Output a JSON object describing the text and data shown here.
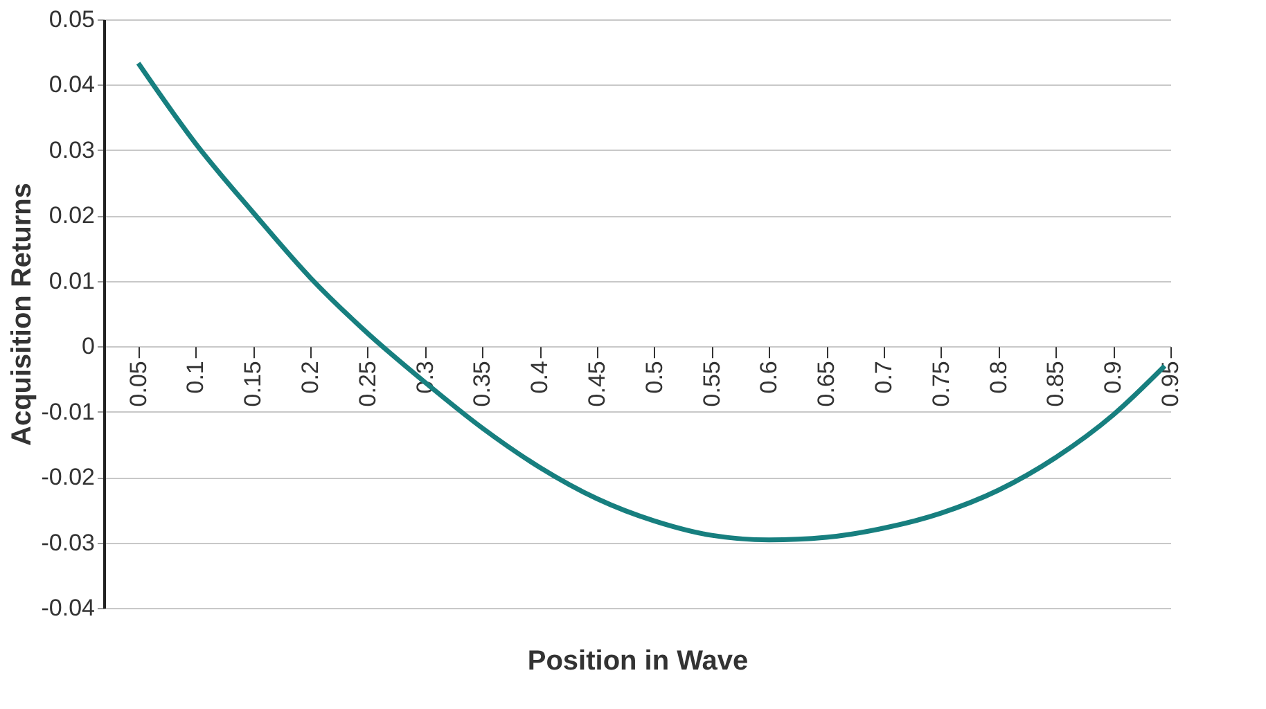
{
  "chart_data": {
    "type": "line",
    "xlabel": "Position in Wave",
    "ylabel": "Acquisition Returns",
    "xlim": [
      0.02,
      0.95
    ],
    "xticks": [
      0.05,
      0.1,
      0.15,
      0.2,
      0.25,
      0.3,
      0.35,
      0.4,
      0.45,
      0.5,
      0.55,
      0.6,
      0.65,
      0.7,
      0.75,
      0.8,
      0.85,
      0.9,
      0.95
    ],
    "ylim": [
      -0.04,
      0.05
    ],
    "yticks": [
      -0.04,
      -0.03,
      -0.02,
      -0.01,
      0,
      0.01,
      0.02,
      0.03,
      0.04,
      0.05
    ],
    "grid": "y",
    "line_style": "solid",
    "series": [
      {
        "color": "#177f7f",
        "x": [
          0.05,
          0.1,
          0.15,
          0.2,
          0.25,
          0.3,
          0.35,
          0.4,
          0.45,
          0.5,
          0.55,
          0.6,
          0.65,
          0.7,
          0.75,
          0.8,
          0.85,
          0.9,
          0.945
        ],
        "values": [
          0.0433,
          0.031,
          0.0205,
          0.0105,
          0.002,
          -0.0055,
          -0.0125,
          -0.0185,
          -0.0233,
          -0.0267,
          -0.0289,
          -0.0296,
          -0.0292,
          -0.0278,
          -0.0255,
          -0.022,
          -0.017,
          -0.0105,
          -0.003
        ]
      }
    ]
  }
}
